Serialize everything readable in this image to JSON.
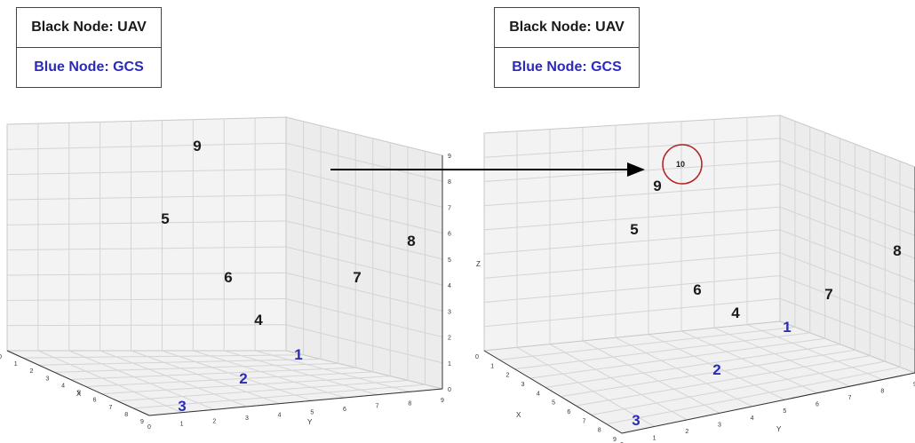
{
  "legend": {
    "black_label": "Black Node: UAV",
    "blue_label": "Blue Node: GCS",
    "black_color": "#1a1a1a",
    "blue_color": "#2b2bb8"
  },
  "axis_labels": {
    "x": "X",
    "y": "Y",
    "z": "Z"
  },
  "tick_labels": [
    "0",
    "1",
    "2",
    "3",
    "4",
    "5",
    "6",
    "7",
    "8",
    "9"
  ],
  "highlight_color": "#b22222",
  "left_plot": {
    "nodes": [
      {
        "label": "9",
        "type": "uav"
      },
      {
        "label": "5",
        "type": "uav"
      },
      {
        "label": "8",
        "type": "uav"
      },
      {
        "label": "6",
        "type": "uav"
      },
      {
        "label": "7",
        "type": "uav"
      },
      {
        "label": "4",
        "type": "uav"
      },
      {
        "label": "1",
        "type": "gcs"
      },
      {
        "label": "2",
        "type": "gcs"
      },
      {
        "label": "3",
        "type": "gcs"
      }
    ]
  },
  "right_plot": {
    "nodes": [
      {
        "label": "10",
        "type": "uav",
        "highlighted": true
      },
      {
        "label": "9",
        "type": "uav"
      },
      {
        "label": "5",
        "type": "uav"
      },
      {
        "label": "8",
        "type": "uav"
      },
      {
        "label": "6",
        "type": "uav"
      },
      {
        "label": "7",
        "type": "uav"
      },
      {
        "label": "4",
        "type": "uav"
      },
      {
        "label": "1",
        "type": "gcs"
      },
      {
        "label": "2",
        "type": "gcs"
      },
      {
        "label": "3",
        "type": "gcs"
      }
    ]
  }
}
